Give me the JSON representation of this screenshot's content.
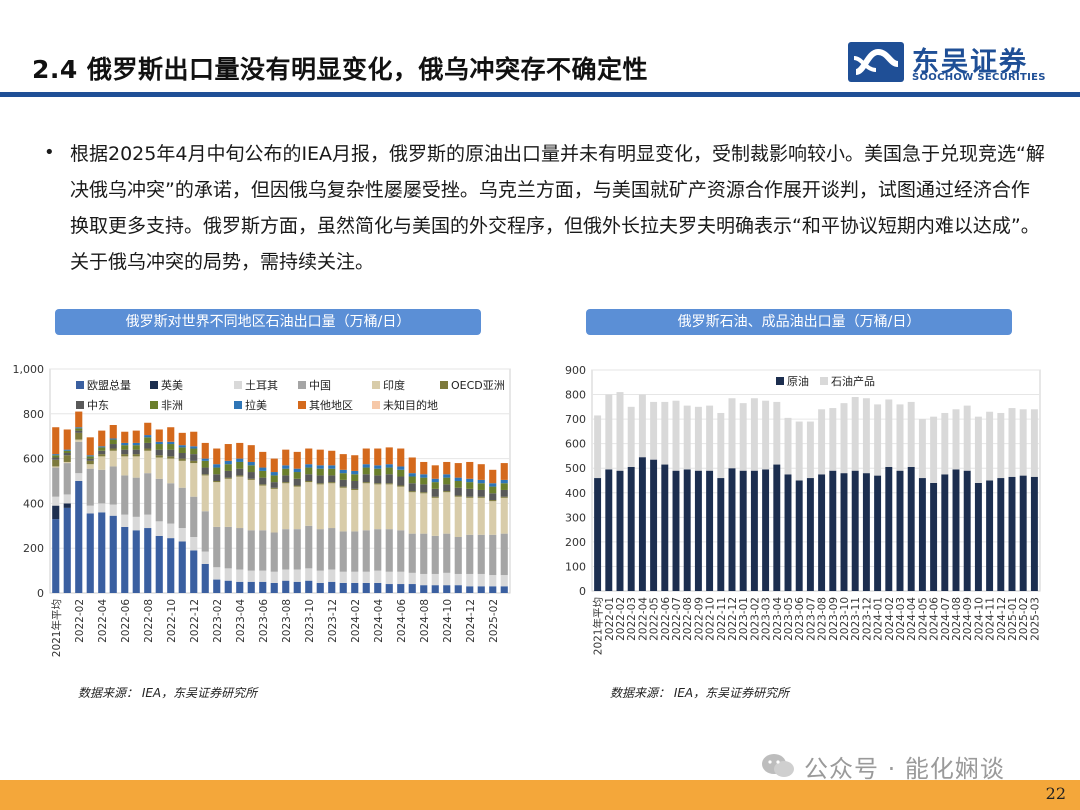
{
  "slide": {
    "title": "2.4 俄罗斯出口量没有明显变化，俄乌冲突存不确定性",
    "bullet": "根据2025年4月中旬公布的IEA月报，俄罗斯的原油出口量并未有明显变化，受制裁影响较小。美国急于兑现竞选“解决俄乌冲突”的承诺，但因俄乌复杂性屡屡受挫。乌克兰方面，与美国就矿产资源合作展开谈判，试图通过经济合作换取更多支持。俄罗斯方面，虽然简化与美国的外交程序，但俄外长拉夫罗夫明确表示“和平协议短期内难以达成”。关于俄乌冲突的局势，需持续关注。",
    "page_number": "22"
  },
  "logo": {
    "cn": "东吴证券",
    "en": "SOOCHOW SECURITIES",
    "color": "#1f4f96"
  },
  "watermark": {
    "text": "公众号 · 能化娴谈",
    "icon": "wechat-icon"
  },
  "left_chart": {
    "header": "俄罗斯对世界不同地区石油出口量（万桶/日）",
    "source": "数据来源： IEA，东吴证券研究所"
  },
  "right_chart": {
    "header": "俄罗斯石油、成品油出口量（万桶/日）",
    "source": "数据来源： IEA，东吴证券研究所"
  },
  "chart_data": [
    {
      "type": "bar",
      "stacked": true,
      "ylim": [
        0,
        1000
      ],
      "yticks": [
        "0",
        "200",
        "400",
        "600",
        "800",
        "1,000"
      ],
      "categories": [
        "2021年平均",
        "2022-01",
        "2022-02",
        "2022-03",
        "2022-04",
        "2022-05",
        "2022-06",
        "2022-07",
        "2022-08",
        "2022-09",
        "2022-10",
        "2022-11",
        "2022-12",
        "2023-01",
        "2023-02",
        "2023-03",
        "2023-04",
        "2023-05",
        "2023-06",
        "2023-07",
        "2023-08",
        "2023-09",
        "2023-10",
        "2023-11",
        "2023-12",
        "2024-01",
        "2024-02",
        "2024-03",
        "2024-04",
        "2024-05",
        "2024-06",
        "2024-07",
        "2024-08",
        "2024-09",
        "2024-10",
        "2024-11",
        "2024-12",
        "2025-01",
        "2025-02",
        "2025-03"
      ],
      "xtick_labels": [
        "2021年平均",
        "2022-02",
        "2022-04",
        "2022-06",
        "2022-08",
        "2022-10",
        "2022-12",
        "2023-02",
        "2023-04",
        "2023-06",
        "2023-08",
        "2023-10",
        "2023-12",
        "2024-02",
        "2024-04",
        "2024-06",
        "2024-08",
        "2024-10",
        "2024-12",
        "2025-02"
      ],
      "legend_position": "top",
      "series": [
        {
          "name": "欧盟总量",
          "color": "#3a5fa0",
          "values": [
            330,
            380,
            500,
            355,
            360,
            345,
            295,
            280,
            290,
            255,
            245,
            230,
            190,
            130,
            60,
            55,
            50,
            50,
            50,
            45,
            55,
            50,
            55,
            45,
            50,
            45,
            45,
            45,
            45,
            40,
            40,
            40,
            35,
            35,
            35,
            35,
            30,
            30,
            30,
            30
          ]
        },
        {
          "name": "英美",
          "color": "#1c2e4f",
          "values": [
            60,
            20,
            0,
            0,
            0,
            0,
            0,
            0,
            0,
            0,
            0,
            0,
            0,
            0,
            0,
            0,
            0,
            0,
            0,
            0,
            0,
            0,
            0,
            0,
            0,
            0,
            0,
            0,
            0,
            0,
            0,
            0,
            0,
            0,
            0,
            0,
            0,
            0,
            0,
            0
          ]
        },
        {
          "name": "土耳其",
          "color": "#d9d9d9",
          "values": [
            40,
            40,
            35,
            35,
            40,
            50,
            55,
            60,
            60,
            65,
            65,
            60,
            60,
            55,
            55,
            55,
            55,
            50,
            50,
            50,
            50,
            55,
            55,
            55,
            55,
            50,
            50,
            50,
            55,
            55,
            55,
            50,
            50,
            50,
            55,
            50,
            55,
            55,
            50,
            50
          ]
        },
        {
          "name": "中国",
          "color": "#a5a5a5",
          "values": [
            130,
            140,
            140,
            165,
            150,
            170,
            175,
            175,
            185,
            190,
            180,
            180,
            180,
            180,
            180,
            185,
            185,
            180,
            180,
            175,
            180,
            180,
            190,
            185,
            185,
            180,
            180,
            185,
            185,
            190,
            185,
            175,
            180,
            170,
            175,
            165,
            175,
            175,
            180,
            185
          ]
        },
        {
          "name": "印度",
          "color": "#d8ccaa",
          "values": [
            5,
            5,
            10,
            20,
            60,
            70,
            85,
            95,
            100,
            95,
            110,
            120,
            150,
            160,
            200,
            215,
            230,
            225,
            200,
            195,
            205,
            190,
            195,
            200,
            200,
            195,
            185,
            210,
            200,
            200,
            195,
            185,
            180,
            170,
            185,
            180,
            165,
            165,
            150,
            160
          ]
        },
        {
          "name": "OECD亚洲",
          "color": "#7d7a3c",
          "values": [
            30,
            30,
            30,
            15,
            10,
            10,
            10,
            10,
            10,
            10,
            10,
            10,
            10,
            5,
            5,
            5,
            5,
            5,
            5,
            5,
            5,
            5,
            5,
            5,
            5,
            5,
            5,
            5,
            5,
            5,
            5,
            5,
            5,
            5,
            5,
            5,
            5,
            5,
            5,
            5
          ]
        },
        {
          "name": "中东",
          "color": "#595959",
          "values": [
            10,
            10,
            10,
            10,
            15,
            20,
            20,
            20,
            25,
            25,
            30,
            25,
            30,
            30,
            30,
            30,
            30,
            30,
            30,
            25,
            30,
            30,
            30,
            35,
            30,
            30,
            35,
            35,
            35,
            40,
            40,
            35,
            35,
            35,
            30,
            35,
            35,
            30,
            30,
            30
          ]
        },
        {
          "name": "非洲",
          "color": "#6b7f2c",
          "values": [
            10,
            10,
            10,
            10,
            15,
            20,
            20,
            20,
            25,
            25,
            25,
            25,
            25,
            30,
            30,
            30,
            30,
            30,
            30,
            30,
            30,
            30,
            30,
            30,
            30,
            30,
            30,
            30,
            30,
            30,
            30,
            30,
            30,
            30,
            30,
            30,
            30,
            30,
            30,
            30
          ]
        },
        {
          "name": "拉美",
          "color": "#2e75b6",
          "values": [
            5,
            5,
            5,
            5,
            5,
            5,
            10,
            10,
            10,
            10,
            10,
            10,
            10,
            10,
            15,
            15,
            15,
            15,
            15,
            15,
            15,
            15,
            15,
            15,
            15,
            15,
            15,
            15,
            15,
            15,
            15,
            15,
            15,
            15,
            15,
            15,
            15,
            15,
            15,
            15
          ]
        },
        {
          "name": "其他地区",
          "color": "#d4691c",
          "values": [
            120,
            90,
            70,
            80,
            70,
            60,
            50,
            55,
            55,
            55,
            65,
            55,
            65,
            70,
            70,
            75,
            70,
            75,
            70,
            60,
            70,
            75,
            70,
            70,
            65,
            70,
            70,
            70,
            75,
            75,
            80,
            70,
            55,
            60,
            55,
            65,
            75,
            70,
            60,
            75
          ]
        },
        {
          "name": "未知目的地",
          "color": "#f6c8a8",
          "values": [
            0,
            0,
            0,
            0,
            0,
            0,
            0,
            0,
            0,
            0,
            0,
            0,
            0,
            0,
            0,
            0,
            0,
            0,
            0,
            0,
            0,
            0,
            0,
            0,
            0,
            0,
            0,
            0,
            0,
            0,
            0,
            0,
            0,
            0,
            0,
            0,
            0,
            0,
            0,
            0
          ]
        }
      ]
    },
    {
      "type": "bar",
      "stacked": true,
      "ylim": [
        0,
        900
      ],
      "yticks": [
        "0",
        "100",
        "200",
        "300",
        "400",
        "500",
        "600",
        "700",
        "800",
        "900"
      ],
      "categories": [
        "2021年平均",
        "2022-01",
        "2022-02",
        "2022-03",
        "2022-04",
        "2022-05",
        "2022-06",
        "2022-07",
        "2022-08",
        "2022-09",
        "2022-10",
        "2022-11",
        "2022-12",
        "2023-01",
        "2023-02",
        "2023-03",
        "2023-04",
        "2023-05",
        "2023-06",
        "2023-07",
        "2023-08",
        "2023-09",
        "2023-10",
        "2023-11",
        "2023-12",
        "2024-01",
        "2024-02",
        "2024-03",
        "2024-04",
        "2024-05",
        "2024-06",
        "2024-07",
        "2024-08",
        "2024-09",
        "2024-10",
        "2024-11",
        "2024-12",
        "2025-01",
        "2025-02",
        "2025-03"
      ],
      "legend_position": "top",
      "series": [
        {
          "name": "原油",
          "color": "#1c2e4f",
          "values": [
            460,
            495,
            490,
            505,
            545,
            535,
            515,
            490,
            495,
            490,
            490,
            460,
            500,
            490,
            490,
            495,
            515,
            475,
            450,
            460,
            475,
            490,
            480,
            490,
            480,
            470,
            505,
            490,
            505,
            460,
            440,
            475,
            495,
            490,
            440,
            450,
            460,
            465,
            470,
            465
          ]
        },
        {
          "name": "石油产品",
          "color": "#d9d9d9",
          "values": [
            255,
            305,
            320,
            245,
            255,
            235,
            255,
            285,
            260,
            260,
            265,
            265,
            285,
            275,
            295,
            280,
            255,
            230,
            240,
            230,
            265,
            255,
            285,
            300,
            305,
            290,
            275,
            270,
            265,
            240,
            270,
            250,
            245,
            265,
            270,
            280,
            265,
            280,
            270,
            275
          ]
        }
      ]
    }
  ]
}
